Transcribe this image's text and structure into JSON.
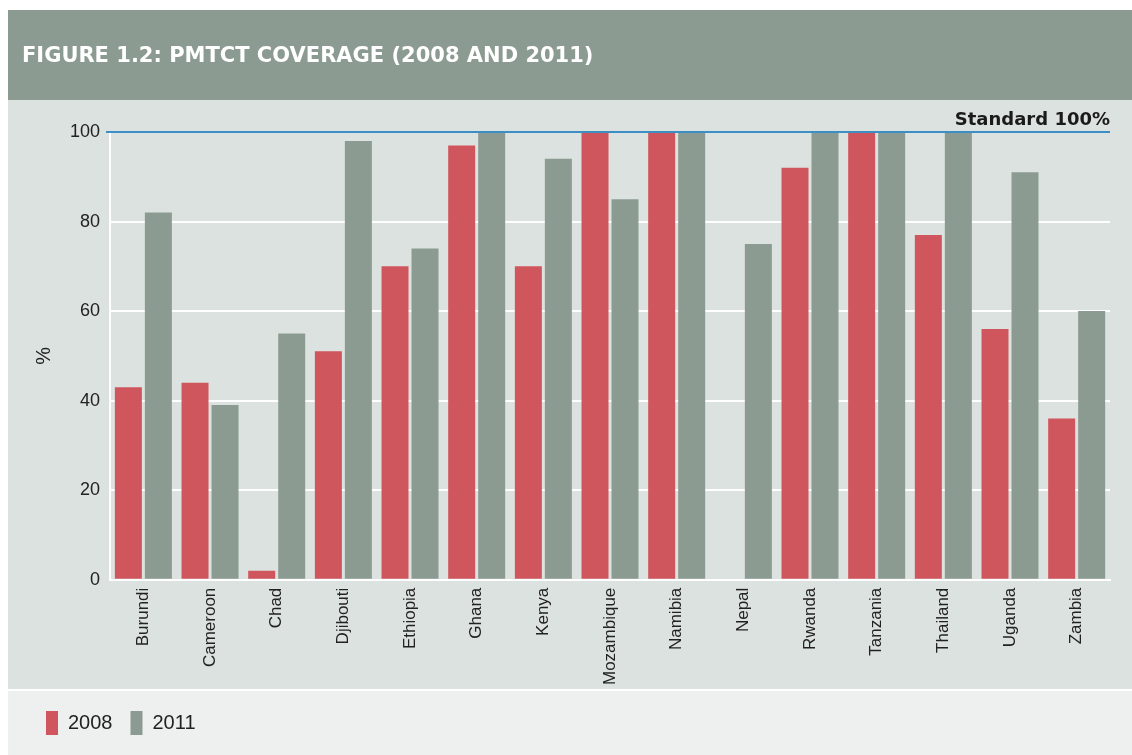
{
  "chart_data": {
    "type": "bar",
    "title": "FIGURE 1.2: PMTCT COVERAGE (2008 AND 2011)",
    "ylabel": "%",
    "categories": [
      "Burundi",
      "Cameroon",
      "Chad",
      "Djibouti",
      "Ethiopia",
      "Ghana",
      "Kenya",
      "Mozambique",
      "Namibia",
      "Nepal",
      "Rwanda",
      "Tanzania",
      "Thailand",
      "Uganda",
      "Zambia"
    ],
    "series": [
      {
        "name": "2008",
        "color": "#d0565d",
        "values": [
          43,
          44,
          2,
          51,
          70,
          97,
          70,
          100,
          100,
          null,
          92,
          100,
          77,
          56,
          36
        ]
      },
      {
        "name": "2011",
        "color": "#8c9b91",
        "values": [
          82,
          39,
          55,
          98,
          74,
          100,
          94,
          85,
          100,
          75,
          100,
          100,
          100,
          91,
          60
        ]
      }
    ],
    "ylim": [
      0,
      100
    ],
    "yticks": [
      0,
      20,
      40,
      60,
      80,
      100
    ],
    "grid": "y",
    "legend": "bottom left",
    "ref_lines": [
      {
        "axis": "y",
        "value": 100,
        "label": "Standard 100%",
        "color": "#3b8fc4"
      }
    ]
  }
}
